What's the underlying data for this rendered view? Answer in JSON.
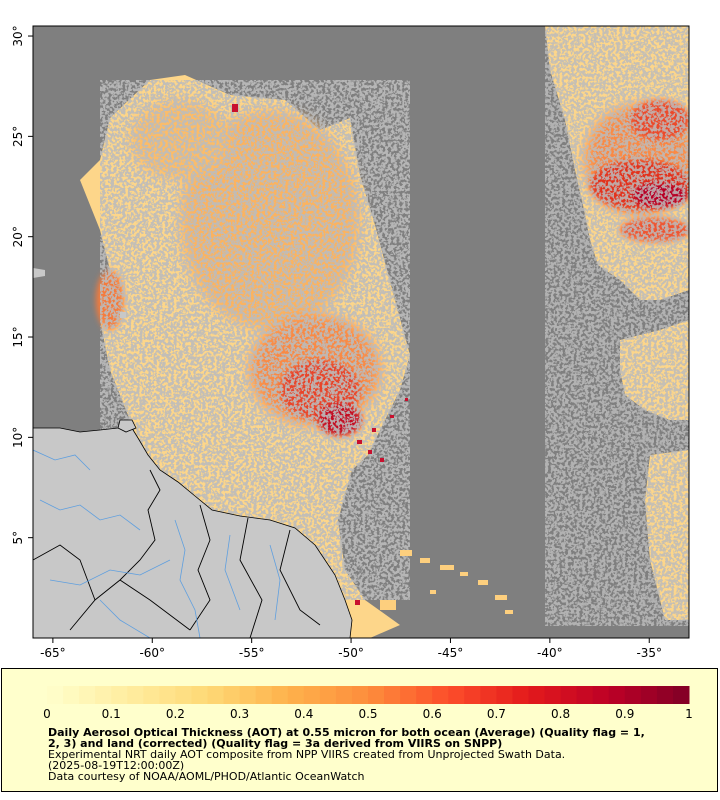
{
  "map": {
    "lon_range": [
      -66,
      -33
    ],
    "lat_range": [
      0,
      30.5
    ],
    "x_ticks": [
      {
        "value": -65,
        "label": "-65°"
      },
      {
        "value": -60,
        "label": "-60°"
      },
      {
        "value": -55,
        "label": "-55°"
      },
      {
        "value": -50,
        "label": "-50°"
      },
      {
        "value": -45,
        "label": "-45°"
      },
      {
        "value": -40,
        "label": "-40°"
      },
      {
        "value": -35,
        "label": "-35°"
      }
    ],
    "y_ticks": [
      {
        "value": 5,
        "label": "5°"
      },
      {
        "value": 10,
        "label": "10°"
      },
      {
        "value": 15,
        "label": "15°"
      },
      {
        "value": 20,
        "label": "20°"
      },
      {
        "value": 25,
        "label": "25°"
      },
      {
        "value": 30,
        "label": "30°"
      }
    ],
    "colors": {
      "no_data": "#7f7f7f",
      "land": "#c8c8c8",
      "rivers": "#5f9fdf",
      "borders": "#000000"
    }
  },
  "legend": {
    "min": 0,
    "max": 1,
    "ticks": [
      {
        "value": 0,
        "label": "0"
      },
      {
        "value": 0.1,
        "label": "0.1"
      },
      {
        "value": 0.2,
        "label": "0.2"
      },
      {
        "value": 0.3,
        "label": "0.3"
      },
      {
        "value": 0.4,
        "label": "0.4"
      },
      {
        "value": 0.5,
        "label": "0.5"
      },
      {
        "value": 0.6,
        "label": "0.6"
      },
      {
        "value": 0.7,
        "label": "0.7"
      },
      {
        "value": 0.8,
        "label": "0.8"
      },
      {
        "value": 0.9,
        "label": "0.9"
      },
      {
        "value": 1,
        "label": "1"
      }
    ],
    "color_stops": [
      "#ffffcc",
      "#ffeda0",
      "#fed976",
      "#feb24c",
      "#fd8d3c",
      "#fc4e2a",
      "#e31a1c",
      "#bd0026",
      "#800026"
    ],
    "title_line1": "Daily Aerosol Optical Thickness (AOT) at 0.55 micron for both ocean (Average) (Quality flag = 1,",
    "title_line2": "2, 3) and land (corrected) (Quality flag = 3a derived from VIIRS on SNPP)",
    "credit_line1": "Experimental NRT daily AOT composite from NPP VIIRS created from Unprojected Swath Data.",
    "credit_line2": "(2025-08-19T12:00:00Z)",
    "credit_line3": "Data courtesy of NOAA/AOML/PHOD/Atlantic OceanWatch"
  }
}
